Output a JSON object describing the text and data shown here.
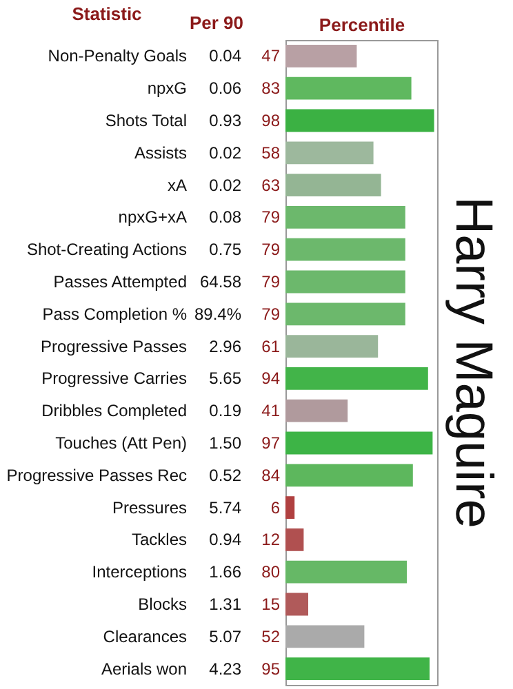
{
  "chart_data": {
    "type": "bar",
    "orientation": "horizontal",
    "title": "Harry Maguire",
    "ylabel": "Statistic",
    "xlabel": "Percentile",
    "categories": [
      "Non-Penalty Goals",
      "npxG",
      "Shots Total",
      "Assists",
      "xA",
      "npxG+xA",
      "Shot-Creating Actions",
      "Passes Attempted",
      "Pass Completion %",
      "Progressive Passes",
      "Progressive Carries",
      "Dribbles Completed",
      "Touches (Att Pen)",
      "Progressive Passes Rec",
      "Pressures",
      "Tackles",
      "Interceptions",
      "Blocks",
      "Clearances",
      "Aerials won"
    ],
    "values": [
      47,
      83,
      98,
      58,
      63,
      79,
      79,
      79,
      79,
      61,
      94,
      41,
      97,
      84,
      6,
      12,
      80,
      15,
      52,
      95
    ],
    "colors": [
      "#b8a0a4",
      "#5fb85f",
      "#3bb143",
      "#9db89d",
      "#94b594",
      "#6cb86c",
      "#6cb86c",
      "#6cb86c",
      "#6cb86c",
      "#9ab69a",
      "#42b449",
      "#b09a9d",
      "#3db446",
      "#5db75d",
      "#b04040",
      "#b05050",
      "#66b866",
      "#b05a5a",
      "#aaaaaa",
      "#40b448"
    ],
    "xlim": [
      0,
      100
    ],
    "data_labels": true,
    "annotations": [
      "Per 90",
      "0.04",
      "0.06",
      "0.93",
      "0.02",
      "0.02",
      "0.08",
      "0.75",
      "64.58",
      "89.4%",
      "2.96",
      "5.65",
      "0.19",
      "1.50",
      "0.52",
      "5.74",
      "0.94",
      "1.66",
      "1.31",
      "5.07",
      "4.23"
    ]
  }
}
